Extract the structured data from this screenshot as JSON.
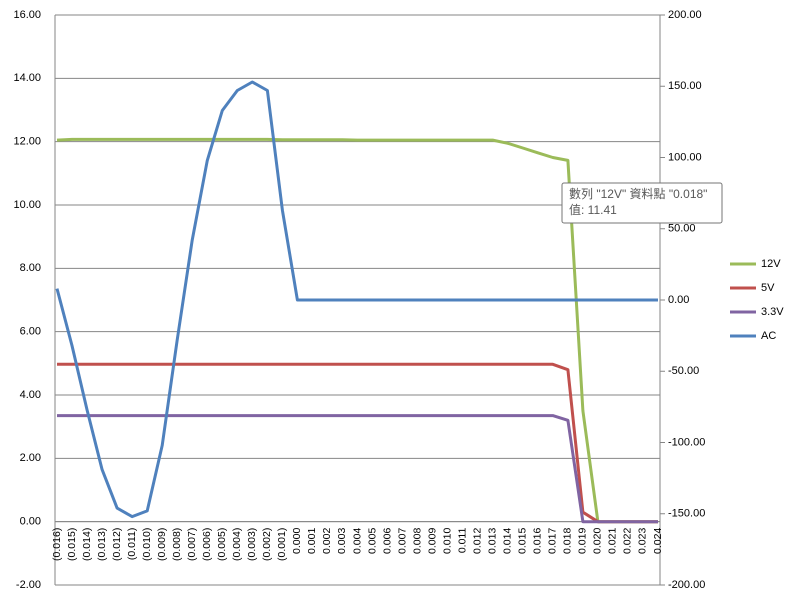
{
  "chart_data": {
    "type": "line",
    "categories": [
      "(0.016)",
      "(0.015)",
      "(0.014)",
      "(0.013)",
      "(0.012)",
      "(0.011)",
      "(0.010)",
      "(0.009)",
      "(0.008)",
      "(0.007)",
      "(0.006)",
      "(0.005)",
      "(0.004)",
      "(0.003)",
      "(0.002)",
      "(0.001)",
      "0.000",
      "0.001",
      "0.002",
      "0.003",
      "0.004",
      "0.005",
      "0.006",
      "0.007",
      "0.008",
      "0.009",
      "0.010",
      "0.011",
      "0.012",
      "0.013",
      "0.014",
      "0.015",
      "0.016",
      "0.017",
      "0.018",
      "0.019",
      "0.020",
      "0.021",
      "0.022",
      "0.023",
      "0.024"
    ],
    "series": [
      {
        "name": "12V",
        "color": "#9bbb59",
        "values": [
          12.05,
          12.07,
          12.07,
          12.07,
          12.07,
          12.07,
          12.07,
          12.07,
          12.07,
          12.07,
          12.07,
          12.07,
          12.07,
          12.07,
          12.07,
          12.06,
          12.06,
          12.06,
          12.06,
          12.06,
          12.05,
          12.05,
          12.05,
          12.05,
          12.05,
          12.05,
          12.05,
          12.05,
          12.05,
          12.05,
          11.95,
          11.8,
          11.65,
          11.5,
          11.41,
          3.5,
          0.0,
          0.0,
          0.0,
          0.0,
          0.0
        ]
      },
      {
        "name": "5V",
        "color": "#c0504d",
        "values": [
          4.97,
          4.97,
          4.97,
          4.97,
          4.97,
          4.97,
          4.97,
          4.97,
          4.97,
          4.97,
          4.97,
          4.97,
          4.97,
          4.97,
          4.97,
          4.97,
          4.97,
          4.97,
          4.97,
          4.97,
          4.97,
          4.97,
          4.97,
          4.97,
          4.97,
          4.97,
          4.97,
          4.97,
          4.97,
          4.97,
          4.97,
          4.97,
          4.97,
          4.97,
          4.8,
          0.3,
          0.0,
          0.0,
          0.0,
          0.0,
          0.0
        ]
      },
      {
        "name": "3.3V",
        "color": "#8064a2",
        "values": [
          3.35,
          3.35,
          3.35,
          3.35,
          3.35,
          3.35,
          3.35,
          3.35,
          3.35,
          3.35,
          3.35,
          3.35,
          3.35,
          3.35,
          3.35,
          3.35,
          3.35,
          3.35,
          3.35,
          3.35,
          3.35,
          3.35,
          3.35,
          3.35,
          3.35,
          3.35,
          3.35,
          3.35,
          3.35,
          3.35,
          3.35,
          3.35,
          3.35,
          3.35,
          3.2,
          0.0,
          0.0,
          0.0,
          0.0,
          0.0,
          0.0
        ]
      },
      {
        "name": "AC",
        "color": "#4f81bd",
        "axis": "y2",
        "values": [
          8,
          -32,
          -77,
          -119,
          -146,
          -152,
          -148,
          -102,
          -28,
          42,
          98,
          133,
          147,
          153,
          147,
          63,
          0,
          0,
          0,
          0,
          0,
          0,
          0,
          0,
          0,
          0,
          0,
          0,
          0,
          0,
          0,
          0,
          0,
          0,
          0,
          0,
          0,
          0,
          0,
          0,
          0
        ]
      }
    ],
    "ylim": [
      -2,
      16
    ],
    "yticks": [
      {
        "value": -2,
        "label": "-2.00"
      },
      {
        "value": 0,
        "label": "0.00"
      },
      {
        "value": 2,
        "label": "2.00"
      },
      {
        "value": 4,
        "label": "4.00"
      },
      {
        "value": 6,
        "label": "6.00"
      },
      {
        "value": 8,
        "label": "8.00"
      },
      {
        "value": 10,
        "label": "10.00"
      },
      {
        "value": 12,
        "label": "12.00"
      },
      {
        "value": 14,
        "label": "14.00"
      },
      {
        "value": 16,
        "label": "16.00"
      }
    ],
    "y2lim": [
      -200,
      200
    ],
    "y2ticks": [
      {
        "value": -200,
        "label": "-200.00"
      },
      {
        "value": -150,
        "label": "-150.00"
      },
      {
        "value": -100,
        "label": "-100.00"
      },
      {
        "value": -50,
        "label": "-50.00"
      },
      {
        "value": 0,
        "label": "0.00"
      },
      {
        "value": 50,
        "label": "50.00"
      },
      {
        "value": 100,
        "label": "100.00"
      },
      {
        "value": 150,
        "label": "150.00"
      },
      {
        "value": 200,
        "label": "200.00"
      }
    ],
    "grid": true,
    "legend": "right",
    "annotations": [
      "數列 \"12V\" 資料點 \"0.018\"",
      "值: 11.41"
    ]
  }
}
